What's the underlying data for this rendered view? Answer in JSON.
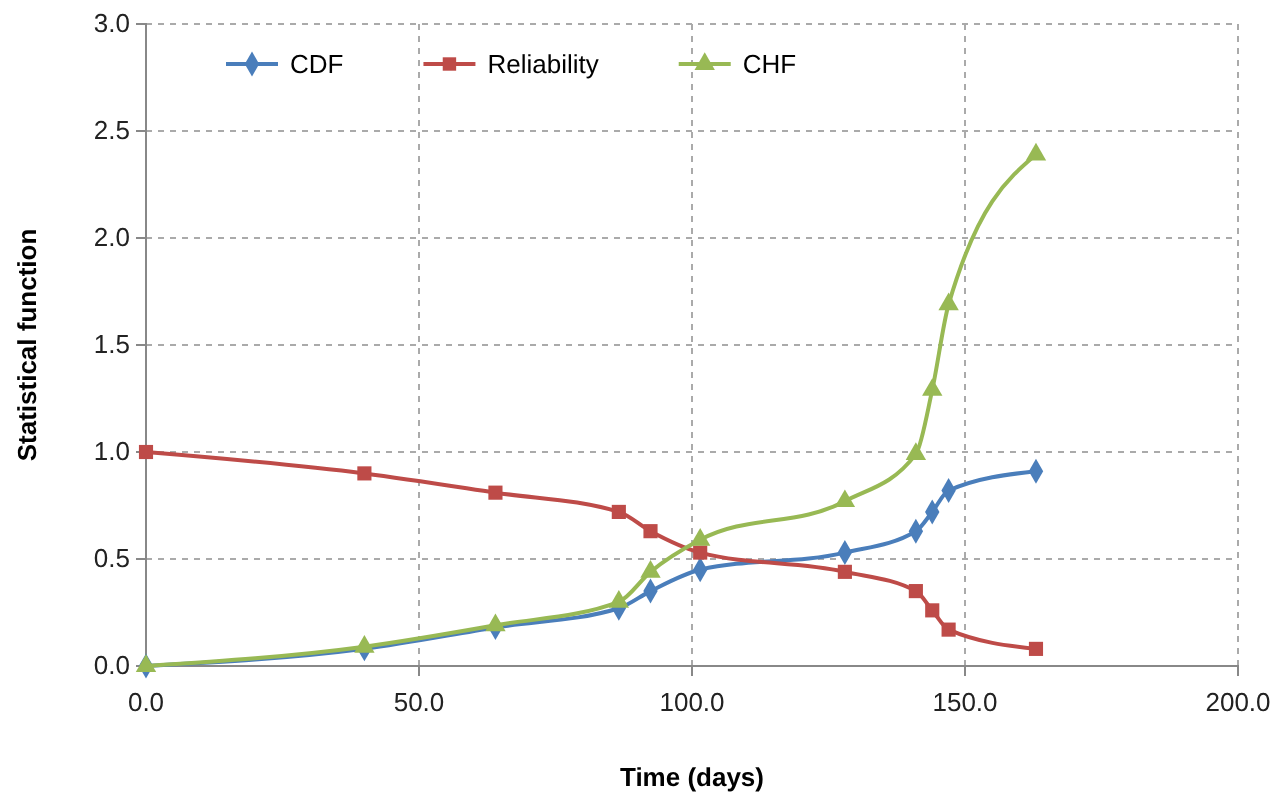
{
  "chart_data": {
    "type": "line",
    "xlabel": "Time (days)",
    "ylabel": "Statistical function",
    "x": [
      0,
      40,
      64,
      86.6,
      92.4,
      101.5,
      128,
      141,
      144,
      147,
      163
    ],
    "series": [
      {
        "name": "CDF",
        "color": "#4a7ebb",
        "marker": "diamond",
        "values": [
          0,
          0.08,
          0.18,
          0.27,
          0.35,
          0.45,
          0.53,
          0.63,
          0.72,
          0.82,
          0.91
        ]
      },
      {
        "name": "Reliability",
        "color": "#be4b48",
        "marker": "square",
        "values": [
          1.0,
          0.9,
          0.81,
          0.72,
          0.63,
          0.53,
          0.44,
          0.35,
          0.26,
          0.17,
          0.08
        ]
      },
      {
        "name": "CHF",
        "color": "#98b954",
        "marker": "triangle",
        "values": [
          0,
          0.09,
          0.19,
          0.3,
          0.44,
          0.59,
          0.77,
          0.99,
          1.29,
          1.69,
          2.39
        ]
      }
    ],
    "xlim": [
      0,
      200
    ],
    "xticks": [
      {
        "value": 0,
        "label": "0.0"
      },
      {
        "value": 50,
        "label": "50.0"
      },
      {
        "value": 100,
        "label": "100.0"
      },
      {
        "value": 150,
        "label": "150.0"
      },
      {
        "value": 200,
        "label": "200.0"
      }
    ],
    "ylim": [
      0,
      3
    ],
    "yticks": [
      {
        "value": 0,
        "label": "0.0"
      },
      {
        "value": 0.5,
        "label": "0.5"
      },
      {
        "value": 1,
        "label": "1.0"
      },
      {
        "value": 1.5,
        "label": "1.5"
      },
      {
        "value": 2,
        "label": "2.0"
      },
      {
        "value": 2.5,
        "label": "2.5"
      },
      {
        "value": 3,
        "label": "3.0"
      }
    ],
    "grid": true,
    "legend": "top"
  }
}
